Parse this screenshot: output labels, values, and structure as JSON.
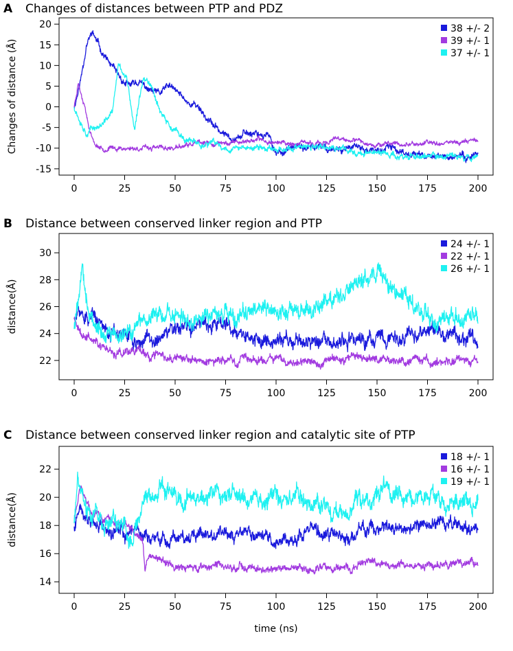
{
  "chart_data": [
    {
      "type": "line",
      "panel_label": "A",
      "title": "Changes of distances between PTP and PDZ",
      "xlabel": "",
      "ylabel": "Changes of distance (Å)",
      "xlim": [
        0,
        200
      ],
      "ylim": [
        -15,
        20
      ],
      "xticks": [
        0,
        25,
        50,
        75,
        100,
        125,
        150,
        175,
        200
      ],
      "yticks": [
        -15,
        -10,
        -5,
        0,
        5,
        10,
        15,
        20
      ],
      "legend_position": "top-right",
      "series": [
        {
          "name": "38 +/- 2",
          "color": "#1a1adc",
          "amp": 0.9,
          "seed": 11,
          "x": [
            0,
            3,
            6,
            9,
            13,
            18,
            22,
            27,
            32,
            37,
            42,
            47,
            52,
            57,
            62,
            66,
            70,
            75,
            82,
            90,
            96,
            100,
            110,
            120,
            130,
            140,
            150,
            155,
            165,
            175,
            185,
            195,
            200
          ],
          "y": [
            0,
            6,
            15,
            18,
            14,
            10,
            7,
            5,
            6,
            4,
            3,
            5,
            3,
            1,
            0,
            -3,
            -5,
            -7,
            -7,
            -6,
            -7,
            -11,
            -10,
            -10,
            -10,
            -10,
            -11,
            -10,
            -11,
            -12,
            -12,
            -12,
            -11
          ]
        },
        {
          "name": "39 +/- 1",
          "color": "#a23be0",
          "amp": 0.6,
          "seed": 23,
          "x": [
            0,
            2,
            3,
            5,
            7,
            10,
            14,
            20,
            30,
            40,
            50,
            60,
            70,
            80,
            90,
            100,
            110,
            120,
            130,
            140,
            150,
            160,
            170,
            180,
            190,
            200
          ],
          "y": [
            0,
            6,
            4,
            1,
            -4,
            -9,
            -10,
            -10,
            -10,
            -10,
            -10,
            -9,
            -9,
            -8.5,
            -8,
            -8.5,
            -9,
            -9,
            -8,
            -8.5,
            -9,
            -9,
            -9,
            -8.5,
            -8.5,
            -8
          ]
        },
        {
          "name": "37 +/- 1",
          "color": "#1ef1f1",
          "amp": 0.8,
          "seed": 37,
          "x": [
            0,
            3,
            6,
            10,
            15,
            19,
            22,
            26,
            30,
            34,
            38,
            42,
            46,
            50,
            55,
            60,
            65,
            70,
            75,
            80,
            90,
            100,
            110,
            120,
            130,
            140,
            150,
            160,
            170,
            180,
            190,
            200
          ],
          "y": [
            0,
            -3,
            -6,
            -5,
            -4,
            -1,
            10,
            7,
            -6,
            7,
            6,
            0,
            -4,
            -6,
            -8,
            -9,
            -9,
            -9,
            -10,
            -10,
            -10,
            -10,
            -10,
            -10,
            -10,
            -11,
            -11,
            -12,
            -12,
            -12,
            -12,
            -12
          ]
        }
      ]
    },
    {
      "type": "line",
      "panel_label": "B",
      "title": "Distance between conserved linker region and PTP",
      "xlabel": "",
      "ylabel": "distance(Å)",
      "xlim": [
        0,
        200
      ],
      "ylim": [
        21,
        31
      ],
      "xticks": [
        0,
        25,
        50,
        75,
        100,
        125,
        150,
        175,
        200
      ],
      "yticks": [
        22,
        24,
        26,
        28,
        30
      ],
      "legend_position": "top-right",
      "series": [
        {
          "name": "24 +/- 1",
          "color": "#1a1adc",
          "amp": 0.6,
          "seed": 51,
          "x": [
            0,
            3,
            8,
            15,
            22,
            30,
            40,
            50,
            60,
            70,
            80,
            90,
            100,
            110,
            120,
            130,
            140,
            150,
            160,
            170,
            180,
            190,
            200
          ],
          "y": [
            25,
            25.5,
            25,
            24.5,
            24,
            23.5,
            23.5,
            24,
            24.5,
            25,
            24.5,
            23.5,
            23.5,
            23.5,
            23.5,
            23,
            23.5,
            23.5,
            23.5,
            24,
            24,
            23.5,
            23.5
          ]
        },
        {
          "name": "22 +/- 1",
          "color": "#a23be0",
          "amp": 0.35,
          "seed": 63,
          "x": [
            0,
            5,
            10,
            15,
            20,
            25,
            30,
            40,
            50,
            60,
            80,
            100,
            120,
            140,
            160,
            180,
            200
          ],
          "y": [
            25,
            24,
            23.5,
            23,
            22.8,
            23,
            22.8,
            22.5,
            22,
            21.9,
            22,
            22,
            22,
            22.2,
            22,
            22,
            22
          ]
        },
        {
          "name": "26 +/- 1",
          "color": "#1ef1f1",
          "amp": 0.7,
          "seed": 79,
          "x": [
            0,
            2,
            4,
            7,
            12,
            20,
            30,
            40,
            50,
            60,
            70,
            80,
            90,
            100,
            110,
            120,
            130,
            135,
            140,
            145,
            150,
            155,
            160,
            165,
            175,
            185,
            195,
            200
          ],
          "y": [
            24.5,
            26.5,
            29,
            26,
            24.5,
            23.5,
            24.5,
            25.5,
            25,
            25,
            25.5,
            25,
            25.5,
            25.5,
            25.5,
            26,
            26.5,
            27.5,
            28,
            28.5,
            28.5,
            28,
            27,
            26.5,
            25.5,
            25,
            25,
            25
          ]
        }
      ]
    },
    {
      "type": "line",
      "panel_label": "C",
      "title": "Distance between conserved linker region and catalytic site of PTP",
      "xlabel": "time (ns)",
      "ylabel": "distance(Å)",
      "xlim": [
        0,
        200
      ],
      "ylim": [
        13.6,
        23.2
      ],
      "xticks": [
        0,
        25,
        50,
        75,
        100,
        125,
        150,
        175,
        200
      ],
      "yticks": [
        14,
        16,
        18,
        20,
        22
      ],
      "legend_position": "top-right",
      "series": [
        {
          "name": "18 +/- 1",
          "color": "#1a1adc",
          "amp": 0.5,
          "seed": 91,
          "x": [
            0,
            3,
            8,
            15,
            25,
            35,
            45,
            55,
            65,
            75,
            85,
            95,
            105,
            115,
            125,
            135,
            145,
            155,
            165,
            175,
            185,
            195,
            200
          ],
          "y": [
            18,
            19.5,
            18.5,
            18,
            17.5,
            17.5,
            17,
            17,
            17.5,
            17.5,
            17.5,
            17,
            17,
            17.5,
            17.5,
            17,
            18,
            18,
            17.5,
            18,
            18,
            18,
            17.5
          ]
        },
        {
          "name": "16 +/- 1",
          "color": "#a23be0",
          "amp": 0.3,
          "seed": 103,
          "x": [
            0,
            3,
            8,
            15,
            25,
            30,
            34,
            35,
            38,
            42,
            50,
            60,
            70,
            80,
            100,
            120,
            140,
            145,
            150,
            160,
            180,
            195,
            200
          ],
          "y": [
            18.5,
            20.5,
            19,
            18.5,
            18,
            17.5,
            17,
            14.8,
            16,
            15.5,
            15,
            15,
            15,
            15,
            15,
            15,
            15,
            15.5,
            15,
            15.2,
            15.2,
            15.5,
            15.2
          ]
        },
        {
          "name": "19 +/- 1",
          "color": "#1ef1f1",
          "amp": 0.7,
          "seed": 117,
          "x": [
            0,
            2,
            5,
            10,
            20,
            30,
            35,
            40,
            50,
            60,
            70,
            80,
            90,
            100,
            110,
            120,
            130,
            140,
            150,
            160,
            170,
            180,
            190,
            200
          ],
          "y": [
            18,
            21.5,
            19.5,
            18.5,
            18,
            17.5,
            19.5,
            20.5,
            20.5,
            20,
            20.5,
            20,
            19.5,
            20,
            20,
            19.5,
            18.5,
            20,
            20.5,
            20,
            20,
            20,
            19.5,
            20
          ]
        }
      ]
    }
  ]
}
